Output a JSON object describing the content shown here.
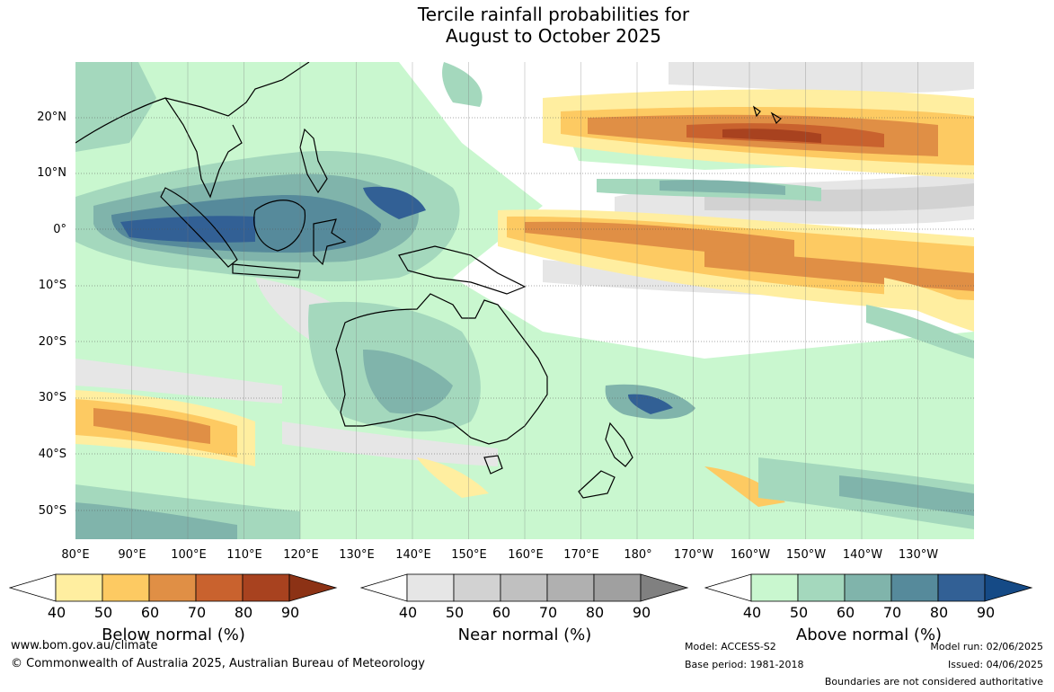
{
  "title": {
    "line1": "Tercile rainfall probabilities for",
    "line2": "August to October 2025"
  },
  "map": {
    "lat_labels": [
      "20°N",
      "10°N",
      "0°",
      "10°S",
      "20°S",
      "30°S",
      "40°S",
      "50°S"
    ],
    "lon_labels": [
      "80°E",
      "90°E",
      "100°E",
      "110°E",
      "120°E",
      "130°E",
      "140°E",
      "150°E",
      "160°E",
      "170°E",
      "180°",
      "170°W",
      "160°W",
      "150°W",
      "140°W",
      "130°W"
    ]
  },
  "legends": {
    "below": {
      "title": "Below normal (%)",
      "ticks": [
        "40",
        "50",
        "60",
        "70",
        "80",
        "90"
      ],
      "colors": [
        "#ffffff",
        "#ffeea0",
        "#fdca62",
        "#e08f45",
        "#c9622e",
        "#a8421f",
        "#8c3215"
      ]
    },
    "near": {
      "title": "Near normal (%)",
      "ticks": [
        "40",
        "50",
        "60",
        "70",
        "80",
        "90"
      ],
      "colors": [
        "#ffffff",
        "#e6e6e6",
        "#d2d2d2",
        "#c0c0c0",
        "#b0b0b0",
        "#a0a0a0",
        "#808080"
      ]
    },
    "above": {
      "title": "Above normal (%)",
      "ticks": [
        "40",
        "50",
        "60",
        "70",
        "80",
        "90"
      ],
      "colors": [
        "#ffffff",
        "#c9f7cf",
        "#a4d8bd",
        "#80b4ab",
        "#568a9b",
        "#326095",
        "#154a86"
      ]
    }
  },
  "footer": {
    "website": "www.bom.gov.au/climate",
    "copyright": "© Commonwealth of Australia 2025, Australian Bureau of Meteorology",
    "model": "Model: ACCESS-S2",
    "base_period": "Base period: 1981-2018",
    "model_run": "Model run: 02/06/2025",
    "issued": "Issued: 04/06/2025",
    "disclaimer": "Boundaries are not considered authoritative"
  }
}
